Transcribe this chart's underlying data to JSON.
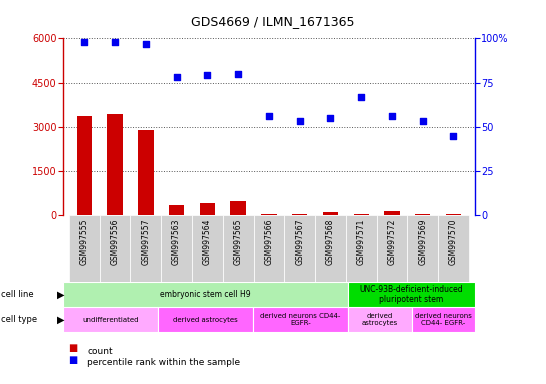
{
  "title": "GDS4669 / ILMN_1671365",
  "samples": [
    "GSM997555",
    "GSM997556",
    "GSM997557",
    "GSM997563",
    "GSM997564",
    "GSM997565",
    "GSM997566",
    "GSM997567",
    "GSM997568",
    "GSM997571",
    "GSM997572",
    "GSM997569",
    "GSM997570"
  ],
  "counts": [
    3350,
    3430,
    2900,
    350,
    410,
    490,
    50,
    30,
    120,
    40,
    130,
    50,
    25
  ],
  "percentiles": [
    98,
    98,
    97,
    78,
    79,
    80,
    56,
    53,
    55,
    67,
    56,
    53,
    45
  ],
  "bar_color": "#cc0000",
  "dot_color": "#0000ee",
  "ylim_left": [
    0,
    6000
  ],
  "ylim_right": [
    0,
    100
  ],
  "yticks_left": [
    0,
    1500,
    3000,
    4500,
    6000
  ],
  "yticks_right": [
    0,
    25,
    50,
    75,
    100
  ],
  "cell_line_groups": [
    {
      "label": "embryonic stem cell H9",
      "start": 0,
      "end": 9,
      "color": "#b0f0b0"
    },
    {
      "label": "UNC-93B-deficient-induced\npluripotent stem",
      "start": 9,
      "end": 13,
      "color": "#00dd00"
    }
  ],
  "cell_type_groups": [
    {
      "label": "undifferentiated",
      "start": 0,
      "end": 3,
      "color": "#ffaaff"
    },
    {
      "label": "derived astrocytes",
      "start": 3,
      "end": 6,
      "color": "#ff66ff"
    },
    {
      "label": "derived neurons CD44-\nEGFR-",
      "start": 6,
      "end": 9,
      "color": "#ff66ff"
    },
    {
      "label": "derived\nastrocytes",
      "start": 9,
      "end": 11,
      "color": "#ffaaff"
    },
    {
      "label": "derived neurons\nCD44- EGFR-",
      "start": 11,
      "end": 13,
      "color": "#ff66ff"
    }
  ],
  "legend_count_label": "count",
  "legend_pct_label": "percentile rank within the sample",
  "tick_bg_color": "#d0d0d0",
  "dotted_line_color": "#555555"
}
